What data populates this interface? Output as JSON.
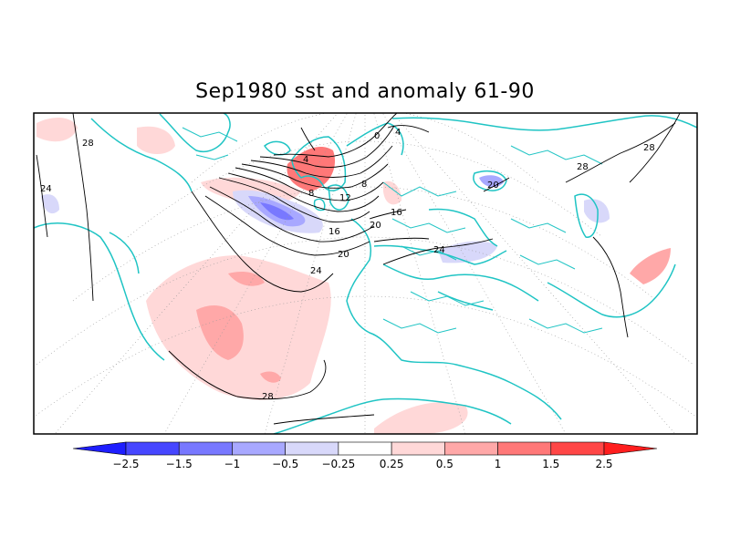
{
  "title": "Sep1980 sst and anomaly 61-90",
  "colors": {
    "coastline": "#1fc4c4",
    "contour": "#000000",
    "frame": "#000000",
    "grid": "#9a9a9a"
  },
  "chart_data": {
    "type": "heatmap",
    "title": "Sep1980 sst and anomaly 61-90",
    "contour_labels": [
      "28",
      "24",
      "8",
      "4",
      "0",
      "4",
      "8",
      "12",
      "16",
      "20",
      "24",
      "16",
      "20",
      "24",
      "28",
      "28",
      "20",
      "28"
    ],
    "colorbar": {
      "ticks": [
        "-2.5",
        "-1.5",
        "-1",
        "-0.5",
        "-0.25",
        "0.25",
        "0.5",
        "1",
        "1.5",
        "2.5"
      ],
      "bins": [
        {
          "color": "#1e1eff"
        },
        {
          "color": "#4646ff"
        },
        {
          "color": "#7878ff"
        },
        {
          "color": "#a8a8ff"
        },
        {
          "color": "#d8d8fa"
        },
        {
          "color": "#ffffff"
        },
        {
          "color": "#ffd8d8"
        },
        {
          "color": "#ffa8a8"
        },
        {
          "color": "#ff7878"
        },
        {
          "color": "#ff4646"
        },
        {
          "color": "#ff1e1e"
        }
      ]
    }
  }
}
